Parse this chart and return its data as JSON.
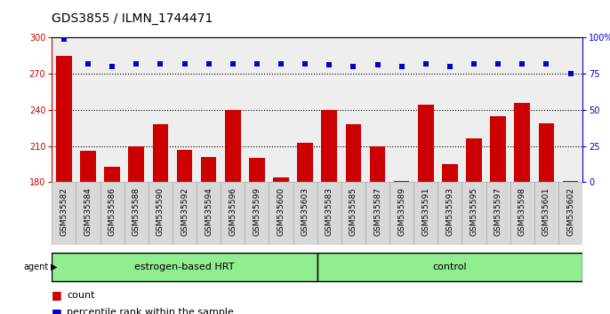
{
  "title": "GDS3855 / ILMN_1744471",
  "samples": [
    "GSM535582",
    "GSM535584",
    "GSM535586",
    "GSM535588",
    "GSM535590",
    "GSM535592",
    "GSM535594",
    "GSM535596",
    "GSM535599",
    "GSM535600",
    "GSM535603",
    "GSM535583",
    "GSM535585",
    "GSM535587",
    "GSM535589",
    "GSM535591",
    "GSM535593",
    "GSM535595",
    "GSM535597",
    "GSM535598",
    "GSM535601",
    "GSM535602"
  ],
  "bar_values": [
    285,
    206,
    193,
    210,
    228,
    207,
    201,
    240,
    200,
    184,
    213,
    240,
    228,
    210,
    181,
    244,
    195,
    216,
    235,
    246,
    229,
    181
  ],
  "percentile_values": [
    99,
    82,
    80,
    82,
    82,
    82,
    82,
    82,
    82,
    82,
    82,
    81,
    80,
    81,
    80,
    82,
    80,
    82,
    82,
    82,
    82,
    75
  ],
  "group_labels": [
    "estrogen-based HRT",
    "control"
  ],
  "group_boundaries": [
    0,
    11,
    22
  ],
  "group_colors": [
    "#90EE90",
    "#90EE90"
  ],
  "bar_color": "#CC0000",
  "dot_color": "#0000CC",
  "ymin": 180,
  "ymax": 300,
  "y2min": 0,
  "y2max": 100,
  "yticks": [
    180,
    210,
    240,
    270,
    300
  ],
  "y2ticks": [
    0,
    25,
    50,
    75,
    100
  ],
  "grid_lines": [
    210,
    240,
    270
  ],
  "plot_bg": "#EEEEEE",
  "xtick_bg": "#DDDDDD",
  "title_fontsize": 10,
  "tick_fontsize": 7,
  "bar_fontsize": 6,
  "legend_fontsize": 8,
  "group_fontsize": 8
}
